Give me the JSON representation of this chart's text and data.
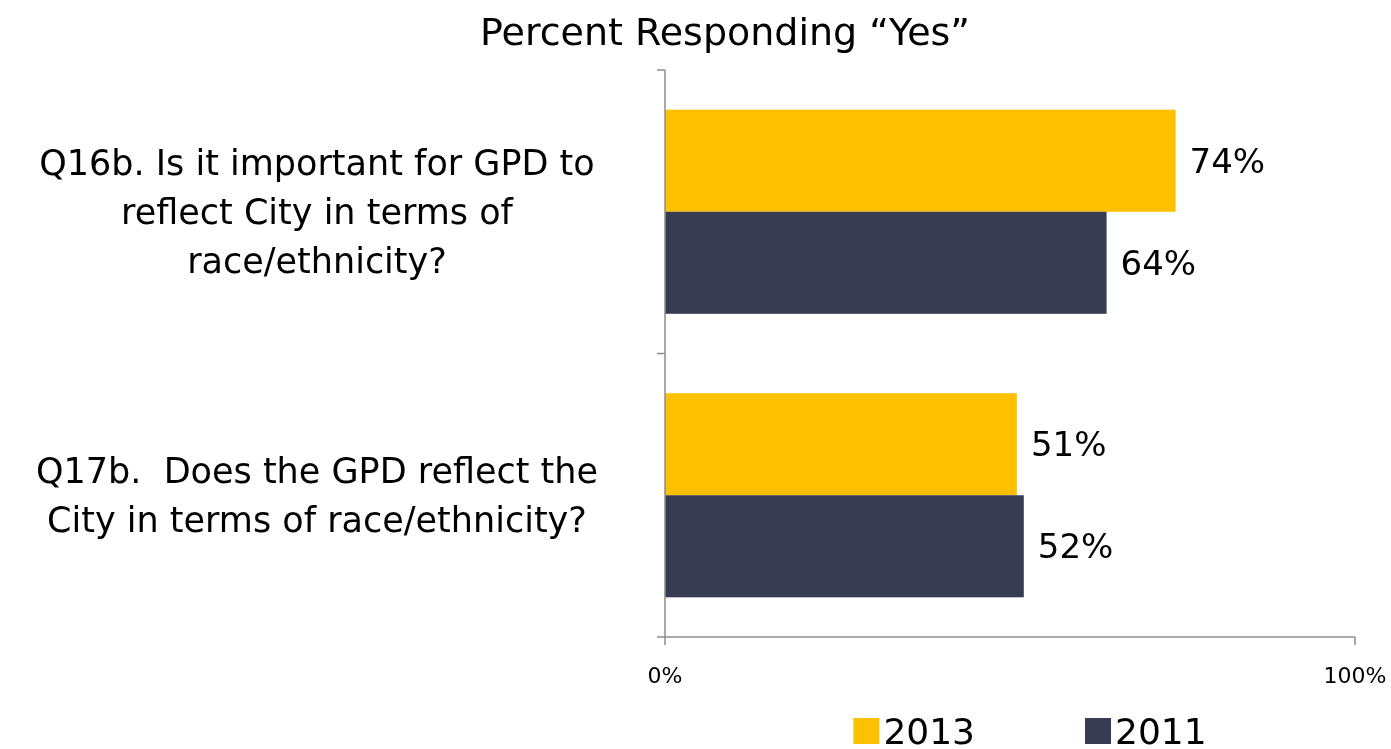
{
  "chart_data": {
    "type": "bar",
    "orientation": "horizontal",
    "title": "Percent Responding “Yes”",
    "categories": [
      "Q16b. Is it important for GPD to reflect City in terms of race/ethnicity?",
      "Q17b.  Does the GPD reflect the City in terms of race/ethnicity?"
    ],
    "series": [
      {
        "name": "2013",
        "color": "#ffc000",
        "values": [
          74,
          51
        ],
        "value_labels": [
          "74%",
          "51%"
        ]
      },
      {
        "name": "2011",
        "color": "#373c52",
        "values": [
          64,
          52
        ],
        "value_labels": [
          "64%",
          "52%"
        ]
      }
    ],
    "xlim": [
      0,
      100
    ],
    "xticks": [
      {
        "value": 0,
        "label": "0%"
      },
      {
        "value": 100,
        "label": "100%"
      }
    ],
    "grid": false,
    "legend": "bottom"
  }
}
